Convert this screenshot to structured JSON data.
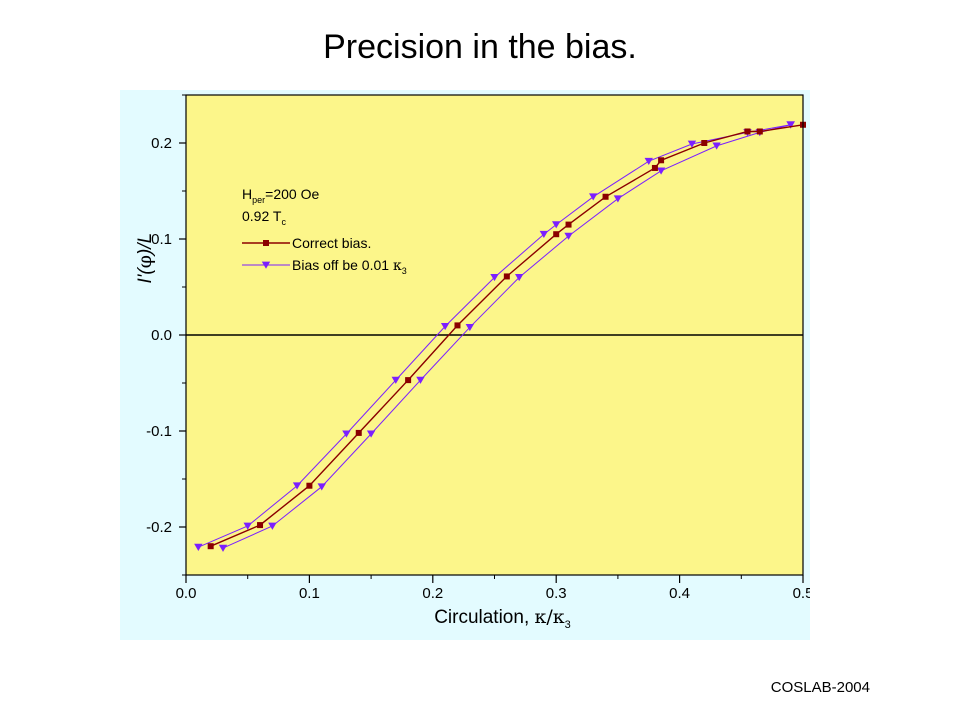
{
  "slide": {
    "title": "Precision in the bias.",
    "footer": "COSLAB-2004"
  },
  "chart_data": {
    "type": "line",
    "title": "",
    "xlabel_text": "Circulation, ",
    "xlabel_symbol": "κ/κ",
    "xlabel_sub": "3",
    "ylabel_pre": "I'(",
    "ylabel_sym": "φ",
    "ylabel_post": ")/L",
    "xlim": [
      0.0,
      0.5
    ],
    "ylim": [
      -0.25,
      0.25
    ],
    "xticks": [
      {
        "value": 0.0,
        "label": "0.0"
      },
      {
        "value": 0.1,
        "label": "0.1"
      },
      {
        "value": 0.2,
        "label": "0.2"
      },
      {
        "value": 0.3,
        "label": "0.3"
      },
      {
        "value": 0.4,
        "label": "0.4"
      },
      {
        "value": 0.5,
        "label": "0.5"
      }
    ],
    "yticks": [
      {
        "value": -0.2,
        "label": "-0.2"
      },
      {
        "value": -0.1,
        "label": "-0.1"
      },
      {
        "value": 0.0,
        "label": "0.0"
      },
      {
        "value": 0.1,
        "label": "0.1"
      },
      {
        "value": 0.2,
        "label": "0.2"
      }
    ],
    "zero_line": true,
    "grid": false,
    "legend_position": "top-left",
    "annotations": [
      {
        "main": "H",
        "sub": "per",
        "rest": "=200 Oe"
      },
      {
        "main": "0.92 T",
        "sub": "c",
        "rest": ""
      }
    ],
    "colors": {
      "plot_background": "#fcf68a",
      "panel_background": "#e3fbff",
      "correct": "#8b0000",
      "offset": "#7b1fff",
      "zero_line": "#000000"
    },
    "series": [
      {
        "name": "Correct bias.",
        "marker": "square",
        "points": [
          [
            0.02,
            -0.22
          ],
          [
            0.06,
            -0.198
          ],
          [
            0.1,
            -0.157
          ],
          [
            0.14,
            -0.102
          ],
          [
            0.18,
            -0.047
          ],
          [
            0.22,
            0.01
          ],
          [
            0.26,
            0.061
          ],
          [
            0.3,
            0.105
          ],
          [
            0.31,
            0.115
          ],
          [
            0.34,
            0.144
          ],
          [
            0.38,
            0.174
          ],
          [
            0.385,
            0.182
          ],
          [
            0.42,
            0.2
          ],
          [
            0.455,
            0.212
          ],
          [
            0.465,
            0.212
          ],
          [
            0.5,
            0.219
          ]
        ]
      },
      {
        "name": "Bias off be 0.01 ",
        "name_symbol": "κ",
        "name_sub": "3",
        "marker": "triangle-down",
        "branches": [
          [
            [
              0.01,
              -0.221
            ],
            [
              0.05,
              -0.199
            ],
            [
              0.09,
              -0.157
            ],
            [
              0.13,
              -0.103
            ],
            [
              0.17,
              -0.047
            ],
            [
              0.21,
              0.009
            ],
            [
              0.25,
              0.06
            ],
            [
              0.29,
              0.105
            ],
            [
              0.3,
              0.115
            ],
            [
              0.33,
              0.144
            ],
            [
              0.375,
              0.181
            ],
            [
              0.41,
              0.199
            ],
            [
              0.455,
              0.211
            ],
            [
              0.49,
              0.219
            ]
          ],
          [
            [
              0.03,
              -0.222
            ],
            [
              0.07,
              -0.199
            ],
            [
              0.11,
              -0.158
            ],
            [
              0.15,
              -0.103
            ],
            [
              0.19,
              -0.047
            ],
            [
              0.23,
              0.008
            ],
            [
              0.27,
              0.06
            ],
            [
              0.31,
              0.103
            ],
            [
              0.35,
              0.142
            ],
            [
              0.385,
              0.171
            ],
            [
              0.43,
              0.197
            ],
            [
              0.465,
              0.211
            ],
            [
              0.49,
              0.219
            ]
          ]
        ]
      }
    ]
  }
}
